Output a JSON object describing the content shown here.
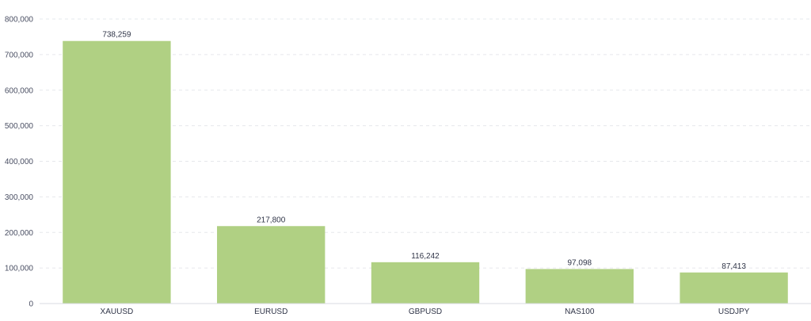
{
  "chart_data": {
    "type": "bar",
    "categories": [
      "XAUUSD",
      "EURUSD",
      "GBPUSD",
      "NAS100",
      "USDJPY"
    ],
    "values": [
      738259,
      217800,
      116242,
      97098,
      87413
    ],
    "value_labels": [
      "738,259",
      "217,800",
      "116,242",
      "97,098",
      "87,413"
    ],
    "y_ticks": [
      0,
      100000,
      200000,
      300000,
      400000,
      500000,
      600000,
      700000,
      800000
    ],
    "y_tick_labels": [
      "0",
      "100,000",
      "200,000",
      "300,000",
      "400,000",
      "500,000",
      "600,000",
      "700,000",
      "800,000"
    ],
    "ylim": [
      0,
      800000
    ],
    "grid": true,
    "legend": "none",
    "bar_color": "#b0d083"
  }
}
